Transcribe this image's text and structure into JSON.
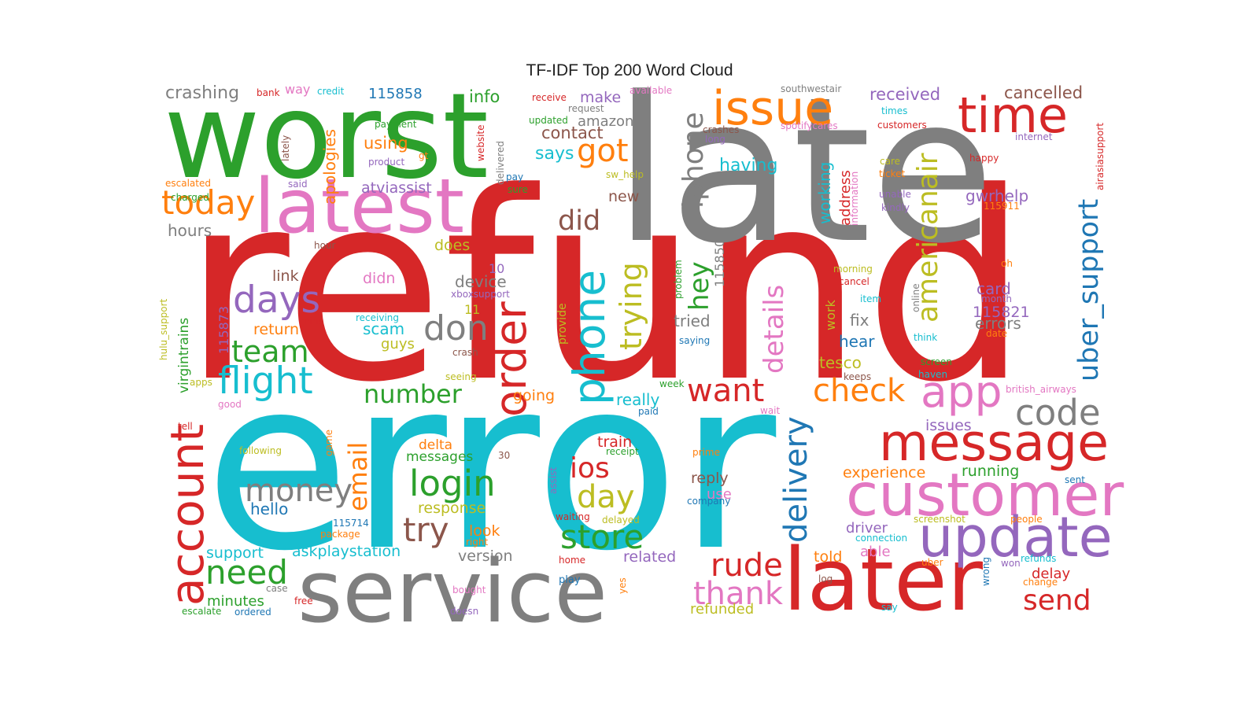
{
  "chart_data": {
    "type": "wordcloud",
    "title": "TF-IDF Top 200 Word Cloud",
    "palette": {
      "red": "#d62728",
      "cyan": "#17becf",
      "green": "#2ca02c",
      "gray": "#7f7f7f",
      "pink": "#e377c2",
      "orange": "#ff7f0e",
      "purple": "#9467bd",
      "brown": "#8c564b",
      "olive": "#bcbd22",
      "blue": "#1f77b4"
    },
    "words": [
      {
        "text": "refund",
        "color": "red"
      },
      {
        "text": "error",
        "color": "cyan"
      },
      {
        "text": "late",
        "color": "gray"
      },
      {
        "text": "worst",
        "color": "green"
      },
      {
        "text": "service",
        "color": "gray"
      },
      {
        "text": "later",
        "color": "red"
      },
      {
        "text": "latest",
        "color": "pink"
      },
      {
        "text": "customer",
        "color": "pink"
      },
      {
        "text": "update",
        "color": "purple"
      },
      {
        "text": "message",
        "color": "red"
      },
      {
        "text": "issue",
        "color": "orange"
      },
      {
        "text": "time",
        "color": "red"
      },
      {
        "text": "account",
        "color": "red"
      },
      {
        "text": "order",
        "color": "red"
      },
      {
        "text": "phone",
        "color": "cyan"
      },
      {
        "text": "app",
        "color": "pink"
      },
      {
        "text": "flight",
        "color": "cyan"
      },
      {
        "text": "login",
        "color": "green"
      },
      {
        "text": "check",
        "color": "orange"
      },
      {
        "text": "today",
        "color": "orange"
      },
      {
        "text": "days",
        "color": "purple"
      },
      {
        "text": "code",
        "color": "gray"
      },
      {
        "text": "don",
        "color": "gray"
      },
      {
        "text": "want",
        "color": "red"
      },
      {
        "text": "delivery",
        "color": "blue"
      },
      {
        "text": "iphone",
        "color": "gray"
      },
      {
        "text": "americanair",
        "color": "olive"
      },
      {
        "text": "uber_support",
        "color": "blue"
      },
      {
        "text": "trying",
        "color": "olive"
      },
      {
        "text": "money",
        "color": "gray"
      },
      {
        "text": "store",
        "color": "green"
      },
      {
        "text": "need",
        "color": "green"
      },
      {
        "text": "rude",
        "color": "red"
      },
      {
        "text": "thank",
        "color": "pink"
      },
      {
        "text": "try",
        "color": "brown"
      },
      {
        "text": "day",
        "color": "olive"
      },
      {
        "text": "email",
        "color": "orange"
      },
      {
        "text": "ios",
        "color": "red"
      },
      {
        "text": "got",
        "color": "orange"
      },
      {
        "text": "did",
        "color": "brown"
      },
      {
        "text": "team",
        "color": "green"
      },
      {
        "text": "number",
        "color": "green"
      },
      {
        "text": "details",
        "color": "pink"
      },
      {
        "text": "hey",
        "color": "green"
      },
      {
        "text": "send",
        "color": "red"
      },
      {
        "text": "crashing",
        "color": "gray"
      },
      {
        "text": "115858",
        "color": "blue"
      },
      {
        "text": "received",
        "color": "purple"
      },
      {
        "text": "cancelled",
        "color": "brown"
      },
      {
        "text": "info",
        "color": "green"
      },
      {
        "text": "make",
        "color": "purple"
      },
      {
        "text": "amazon",
        "color": "gray"
      },
      {
        "text": "contact",
        "color": "brown"
      },
      {
        "text": "says",
        "color": "cyan"
      },
      {
        "text": "using",
        "color": "orange"
      },
      {
        "text": "having",
        "color": "cyan"
      },
      {
        "text": "working",
        "color": "cyan"
      },
      {
        "text": "address",
        "color": "red"
      },
      {
        "text": "gwrhelp",
        "color": "purple"
      },
      {
        "text": "atviassist",
        "color": "purple"
      },
      {
        "text": "new",
        "color": "brown"
      },
      {
        "text": "hours",
        "color": "gray"
      },
      {
        "text": "apologies",
        "color": "orange"
      },
      {
        "text": "does",
        "color": "olive"
      },
      {
        "text": "link",
        "color": "brown"
      },
      {
        "text": "didn",
        "color": "pink"
      },
      {
        "text": "device",
        "color": "gray"
      },
      {
        "text": "10",
        "color": "purple"
      },
      {
        "text": "return",
        "color": "orange"
      },
      {
        "text": "scam",
        "color": "cyan"
      },
      {
        "text": "guys",
        "color": "olive"
      },
      {
        "text": "tried",
        "color": "gray"
      },
      {
        "text": "fix",
        "color": "gray"
      },
      {
        "text": "hear",
        "color": "blue"
      },
      {
        "text": "tesco",
        "color": "olive"
      },
      {
        "text": "card",
        "color": "purple"
      },
      {
        "text": "115821",
        "color": "purple"
      },
      {
        "text": "errors",
        "color": "gray"
      },
      {
        "text": "115850",
        "color": "gray"
      },
      {
        "text": "115873",
        "color": "purple"
      },
      {
        "text": "virgintrains",
        "color": "green"
      },
      {
        "text": "going",
        "color": "orange"
      },
      {
        "text": "really",
        "color": "cyan"
      },
      {
        "text": "delta",
        "color": "orange"
      },
      {
        "text": "messages",
        "color": "green"
      },
      {
        "text": "train",
        "color": "red"
      },
      {
        "text": "response",
        "color": "olive"
      },
      {
        "text": "hello",
        "color": "blue"
      },
      {
        "text": "look",
        "color": "orange"
      },
      {
        "text": "support",
        "color": "cyan"
      },
      {
        "text": "askplaystation",
        "color": "cyan"
      },
      {
        "text": "version",
        "color": "gray"
      },
      {
        "text": "minutes",
        "color": "green"
      },
      {
        "text": "related",
        "color": "purple"
      },
      {
        "text": "reply",
        "color": "brown"
      },
      {
        "text": "use",
        "color": "pink"
      },
      {
        "text": "experience",
        "color": "orange"
      },
      {
        "text": "running",
        "color": "green"
      },
      {
        "text": "issues",
        "color": "purple"
      },
      {
        "text": "driver",
        "color": "purple"
      },
      {
        "text": "able",
        "color": "pink"
      },
      {
        "text": "told",
        "color": "orange"
      },
      {
        "text": "delay",
        "color": "red"
      },
      {
        "text": "refunded",
        "color": "olive"
      },
      {
        "text": "bank",
        "color": "red"
      },
      {
        "text": "way",
        "color": "pink"
      },
      {
        "text": "credit",
        "color": "cyan"
      },
      {
        "text": "payment",
        "color": "green"
      },
      {
        "text": "product",
        "color": "purple"
      },
      {
        "text": "lately",
        "color": "brown"
      },
      {
        "text": "gt",
        "color": "orange"
      },
      {
        "text": "website",
        "color": "red"
      },
      {
        "text": "delivered",
        "color": "gray"
      },
      {
        "text": "pay",
        "color": "blue"
      },
      {
        "text": "sure",
        "color": "green"
      },
      {
        "text": "said",
        "color": "purple"
      },
      {
        "text": "escalated",
        "color": "orange"
      },
      {
        "text": "charged",
        "color": "green"
      },
      {
        "text": "hour",
        "color": "brown"
      },
      {
        "text": "receive",
        "color": "red"
      },
      {
        "text": "request",
        "color": "gray"
      },
      {
        "text": "updated",
        "color": "green"
      },
      {
        "text": "available",
        "color": "pink"
      },
      {
        "text": "southwestair",
        "color": "gray"
      },
      {
        "text": "times",
        "color": "cyan"
      },
      {
        "text": "customers",
        "color": "red"
      },
      {
        "text": "crashes",
        "color": "brown"
      },
      {
        "text": "long",
        "color": "purple"
      },
      {
        "text": "spotifycares",
        "color": "pink"
      },
      {
        "text": "internet",
        "color": "purple"
      },
      {
        "text": "airasiasupport",
        "color": "red"
      },
      {
        "text": "happy",
        "color": "red"
      },
      {
        "text": "care",
        "color": "olive"
      },
      {
        "text": "ticket",
        "color": "orange"
      },
      {
        "text": "unable",
        "color": "purple"
      },
      {
        "text": "kindly",
        "color": "purple"
      },
      {
        "text": "115911",
        "color": "orange"
      },
      {
        "text": "information",
        "color": "pink"
      },
      {
        "text": "sw_help",
        "color": "olive"
      },
      {
        "text": "oh",
        "color": "orange"
      },
      {
        "text": "morning",
        "color": "olive"
      },
      {
        "text": "cancel",
        "color": "red"
      },
      {
        "text": "item",
        "color": "cyan"
      },
      {
        "text": "online",
        "color": "gray"
      },
      {
        "text": "month",
        "color": "purple"
      },
      {
        "text": "date",
        "color": "orange"
      },
      {
        "text": "problem",
        "color": "green"
      },
      {
        "text": "saying",
        "color": "blue"
      },
      {
        "text": "work",
        "color": "olive"
      },
      {
        "text": "think",
        "color": "cyan"
      },
      {
        "text": "screen",
        "color": "green"
      },
      {
        "text": "haven",
        "color": "cyan"
      },
      {
        "text": "keeps",
        "color": "brown"
      },
      {
        "text": "british_airways",
        "color": "pink"
      },
      {
        "text": "week",
        "color": "green"
      },
      {
        "text": "paid",
        "color": "blue"
      },
      {
        "text": "wait",
        "color": "pink"
      },
      {
        "text": "xboxsupport",
        "color": "purple"
      },
      {
        "text": "receiving",
        "color": "cyan"
      },
      {
        "text": "11",
        "color": "olive"
      },
      {
        "text": "crash",
        "color": "brown"
      },
      {
        "text": "seeing",
        "color": "olive"
      },
      {
        "text": "provide",
        "color": "olive"
      },
      {
        "text": "mins",
        "color": "red"
      },
      {
        "text": "hulu_support",
        "color": "olive"
      },
      {
        "text": "apps",
        "color": "olive"
      },
      {
        "text": "good",
        "color": "pink"
      },
      {
        "text": "tell",
        "color": "red"
      },
      {
        "text": "following",
        "color": "olive"
      },
      {
        "text": "game",
        "color": "orange"
      },
      {
        "text": "30",
        "color": "brown"
      },
      {
        "text": "assist",
        "color": "purple"
      },
      {
        "text": "receipt",
        "color": "green"
      },
      {
        "text": "prime",
        "color": "orange"
      },
      {
        "text": "waiting",
        "color": "red"
      },
      {
        "text": "delayed",
        "color": "olive"
      },
      {
        "text": "company",
        "color": "blue"
      },
      {
        "text": "sent",
        "color": "blue"
      },
      {
        "text": "115714",
        "color": "blue"
      },
      {
        "text": "package",
        "color": "orange"
      },
      {
        "text": "right",
        "color": "orange"
      },
      {
        "text": "home",
        "color": "red"
      },
      {
        "text": "screenshot",
        "color": "olive"
      },
      {
        "text": "people",
        "color": "orange"
      },
      {
        "text": "connection",
        "color": "cyan"
      },
      {
        "text": "refunds",
        "color": "cyan"
      },
      {
        "text": "uber",
        "color": "orange"
      },
      {
        "text": "won",
        "color": "purple"
      },
      {
        "text": "wrong",
        "color": "blue"
      },
      {
        "text": "log",
        "color": "brown"
      },
      {
        "text": "change",
        "color": "orange"
      },
      {
        "text": "play",
        "color": "blue"
      },
      {
        "text": "yes",
        "color": "orange"
      },
      {
        "text": "case",
        "color": "gray"
      },
      {
        "text": "bought",
        "color": "pink"
      },
      {
        "text": "escalate",
        "color": "green"
      },
      {
        "text": "ordered",
        "color": "blue"
      },
      {
        "text": "free",
        "color": "red"
      },
      {
        "text": "doesn",
        "color": "purple"
      },
      {
        "text": "say",
        "color": "cyan"
      }
    ]
  }
}
